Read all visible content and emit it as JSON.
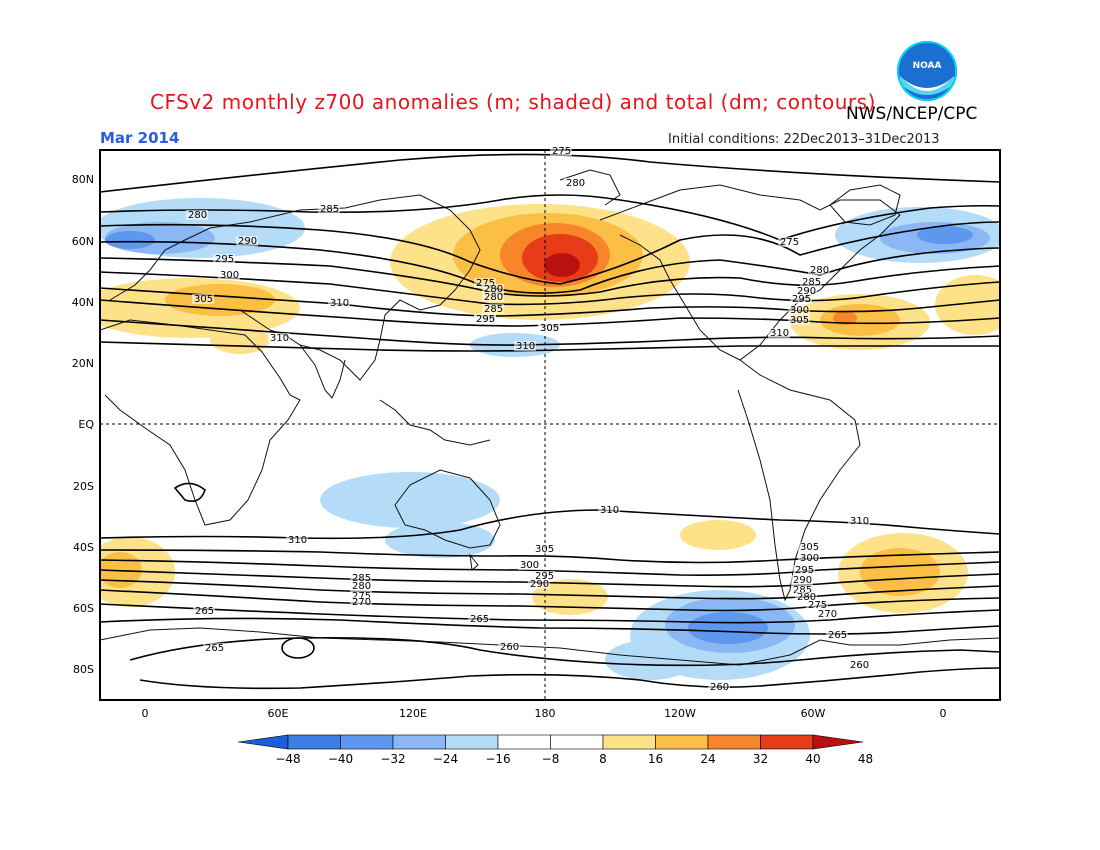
{
  "title": "CFSv2 monthly z700 anomalies (m; shaded) and total (dm; contours)",
  "agency": "NWS/NCEP/CPC",
  "month": "Mar 2014",
  "initial_conditions": "Initial conditions: 22Dec2013–31Dec2013",
  "logo_text": "NOAA",
  "lat_labels": [
    "80N",
    "60N",
    "40N",
    "20N",
    "EQ",
    "20S",
    "40S",
    "60S",
    "80S"
  ],
  "lon_labels": [
    "0",
    "60E",
    "120E",
    "180",
    "120W",
    "60W",
    "0"
  ],
  "colorbar": {
    "labels": [
      "−48",
      "−40",
      "−32",
      "−24",
      "−16",
      "−8",
      "8",
      "16",
      "24",
      "32",
      "40",
      "48"
    ],
    "colors": [
      "#1a5fd8",
      "#3b7ee6",
      "#5d98ee",
      "#8bb8f4",
      "#b4dcf8",
      "#ffffff",
      "#ffffff",
      "#fde28a",
      "#fbbf45",
      "#f7852a",
      "#e83c18",
      "#bb1010"
    ]
  },
  "contour_labels": {
    "nh": [
      "275",
      "280",
      "280",
      "285",
      "290",
      "295",
      "300",
      "305",
      "310",
      "275",
      "280",
      "285",
      "290",
      "295",
      "300",
      "305",
      "310",
      "310",
      "275",
      "280",
      "280",
      "285",
      "290",
      "295",
      "300",
      "305",
      "310"
    ],
    "sh": [
      "310",
      "310",
      "310",
      "305",
      "300",
      "295",
      "290",
      "285",
      "280",
      "275",
      "270",
      "265",
      "265",
      "265",
      "260",
      "260",
      "305",
      "300",
      "295",
      "290",
      "285",
      "280",
      "275",
      "270",
      "265",
      "260"
    ]
  }
}
